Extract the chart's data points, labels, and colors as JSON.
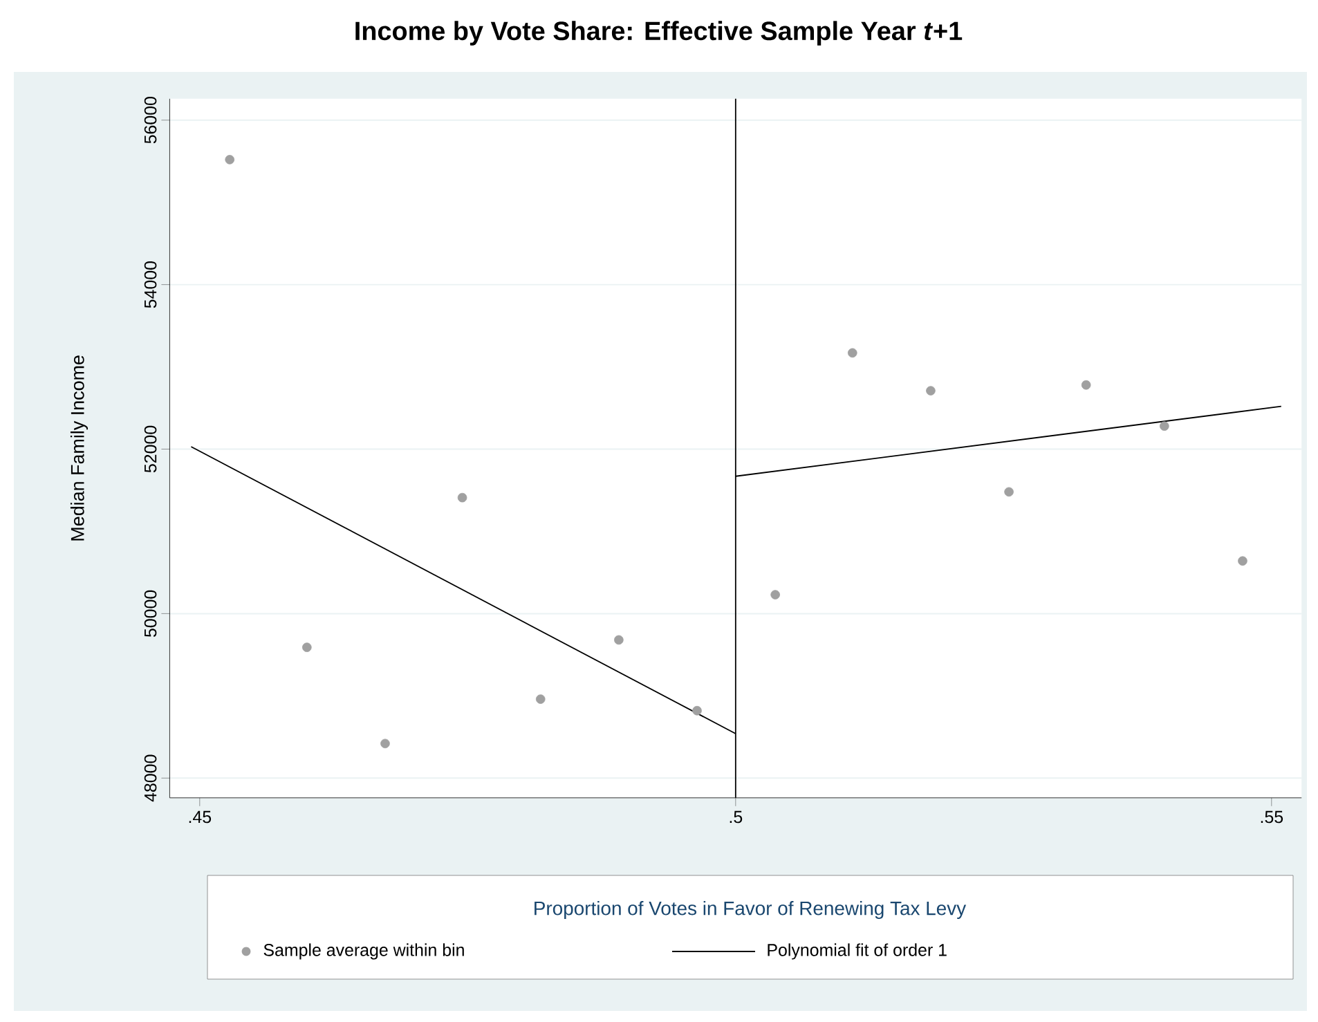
{
  "chart_data": {
    "type": "scatter",
    "title": "Income by Vote Share: Effective Sample Year *t*+1",
    "xlabel": "Proportion of Votes in Favor of Renewing Tax Levy",
    "ylabel": "Median Family Income",
    "xlim": [
      0.4472,
      0.5528
    ],
    "ylim": [
      47760,
      56260
    ],
    "xticks": [
      {
        "value": 0.45,
        "label": ".45"
      },
      {
        "value": 0.5,
        "label": ".5"
      },
      {
        "value": 0.55,
        "label": ".55"
      }
    ],
    "yticks": [
      48000,
      50000,
      52000,
      54000,
      56000
    ],
    "grid": "y",
    "legend": "bottom",
    "ref_lines": [
      {
        "axis": "x",
        "value": 0.5,
        "color": "#000000"
      }
    ],
    "series": [
      {
        "name": "Sample average within bin",
        "marker": "circle",
        "color": "#a0a0a0",
        "x": [
          0.4528,
          0.46,
          0.4673,
          0.4745,
          0.4818,
          0.4891,
          0.4964,
          0.5037,
          0.5109,
          0.5182,
          0.5255,
          0.5327,
          0.54,
          0.5473
        ],
        "values": [
          55520,
          49590,
          48420,
          51410,
          48960,
          49680,
          48820,
          50230,
          53170,
          52710,
          51480,
          52780,
          52280,
          50640
        ]
      },
      {
        "name": "Polynomial fit of order 1",
        "type": "line",
        "marker": "none",
        "color": "#000000",
        "x": [
          0.4492,
          0.5
        ],
        "values": [
          52030,
          48540
        ]
      },
      {
        "type": "line",
        "marker": "none",
        "color": "#000000",
        "x": [
          0.5,
          0.5509
        ],
        "values": [
          51670,
          52520
        ]
      }
    ]
  }
}
